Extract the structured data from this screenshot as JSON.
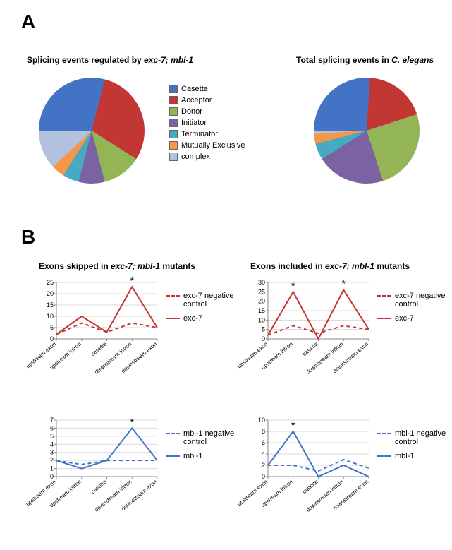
{
  "panelA": {
    "letter": "A",
    "pie_left": {
      "title": {
        "pre": "Splicing events regulated by ",
        "it": "exc-7; mbl-1"
      },
      "categories": [
        "Casette",
        "Acceptor",
        "Donor",
        "Initiator",
        "Terminator",
        "Mutually Exclusive",
        "complex"
      ],
      "values": [
        29,
        30,
        12,
        8,
        5,
        4,
        12
      ],
      "colors": [
        "#4473c5",
        "#c23633",
        "#94b555",
        "#7b62a3",
        "#46aac4",
        "#f79646",
        "#b2c1de"
      ]
    },
    "pie_right": {
      "title": {
        "pre": "Total splicing events in ",
        "it": "C. elegans"
      },
      "categories": [
        "Casette",
        "Acceptor",
        "Donor",
        "Initiator",
        "Terminator",
        "Mutually Exclusive",
        "complex"
      ],
      "values": [
        26,
        19,
        25,
        21,
        5,
        3,
        1
      ],
      "colors": [
        "#4473c5",
        "#c23633",
        "#94b555",
        "#7b62a3",
        "#46aac4",
        "#f79646",
        "#b2c1de"
      ]
    },
    "legend_labels": [
      "Casette",
      "Acceptor",
      "Donor",
      "Initiator",
      "Terminator",
      "Mutually Exclusive",
      "complex"
    ],
    "legend_colors": [
      "#4473c5",
      "#c23633",
      "#94b555",
      "#7b62a3",
      "#46aac4",
      "#f79646",
      "#b2c1de"
    ]
  },
  "panelB": {
    "letter": "B",
    "x_categories": [
      "upstream exon",
      "upstream intron",
      "casette",
      "downstream intron",
      "downstream exon"
    ],
    "charts": [
      {
        "title": {
          "pre": "Exons skipped in ",
          "it": "exc-7; mbl-1",
          "post": " mutants"
        },
        "ylim": [
          0,
          25
        ],
        "ytick_step": 5,
        "series": [
          {
            "label": "exc-7 negative control",
            "color": "#c23633",
            "dash": true,
            "values": [
              2,
              7,
              3,
              7,
              5
            ]
          },
          {
            "label": "exc-7",
            "color": "#c23633",
            "dash": false,
            "values": [
              2,
              10,
              3,
              23,
              5
            ]
          }
        ],
        "stars_at": [
          3
        ]
      },
      {
        "title": {
          "pre": "Exons included in ",
          "it": "exc-7; mbl-1",
          "post": " mutants"
        },
        "ylim": [
          0,
          30
        ],
        "ytick_step": 5,
        "series": [
          {
            "label": "exc-7 negative control",
            "color": "#c23633",
            "dash": true,
            "values": [
              2,
              7,
              3,
              7,
              5
            ]
          },
          {
            "label": "exc-7",
            "color": "#c23633",
            "dash": false,
            "values": [
              2,
              25,
              0,
              26,
              5
            ]
          }
        ],
        "stars_at": [
          1,
          3
        ]
      },
      {
        "title": null,
        "ylim": [
          0,
          7
        ],
        "ytick_step": 1,
        "series": [
          {
            "label": "mbl-1 negative control",
            "color": "#4473c5",
            "dash": true,
            "values": [
              2,
              1.5,
              2,
              2,
              2
            ]
          },
          {
            "label": "mbl-1",
            "color": "#4473c5",
            "dash": false,
            "values": [
              2,
              1,
              2,
              6,
              2
            ]
          }
        ],
        "stars_at": [
          3
        ]
      },
      {
        "title": null,
        "ylim": [
          0,
          10
        ],
        "ytick_step": 2,
        "series": [
          {
            "label": "mbl-1 negative control",
            "color": "#4473c5",
            "dash": true,
            "values": [
              2,
              2,
              1,
              3,
              1.5
            ]
          },
          {
            "label": "mbl-1",
            "color": "#4473c5",
            "dash": false,
            "values": [
              2,
              8,
              0,
              2,
              0
            ]
          }
        ],
        "stars_at": [
          1
        ]
      }
    ]
  },
  "layout": {
    "pie_diam": 150,
    "line_w": 170,
    "line_h": 90
  },
  "style": {
    "axis_color": "#888888",
    "grid_color": "#d9d9d9",
    "linewidth": 2
  }
}
